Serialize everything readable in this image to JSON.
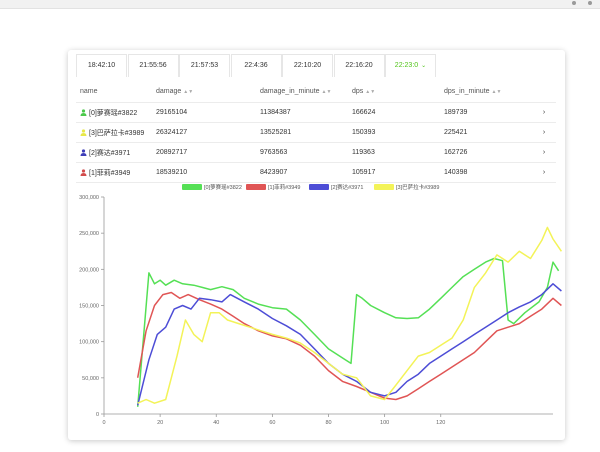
{
  "timestamps": [
    "18:42:10",
    "21:55:56",
    "21:57:53",
    "22:4:36",
    "22:10:20",
    "22:16:20",
    "22:23:0"
  ],
  "active_timestamp_index": 6,
  "table": {
    "columns": [
      "name",
      "damage",
      "damage_in_minute",
      "dps",
      "dps_in_minute"
    ],
    "rows": [
      {
        "name": "[0]萝赛瑶#3822",
        "damage": "29165104",
        "damage_in_minute": "11384387",
        "dps": "166624",
        "dps_in_minute": "189739",
        "color": "#4cc94c"
      },
      {
        "name": "[3]巴萨拉卡#3989",
        "damage": "26324127",
        "damage_in_minute": "13525281",
        "dps": "150393",
        "dps_in_minute": "225421",
        "color": "#e8e84a"
      },
      {
        "name": "[2]赛达#3971",
        "damage": "20892717",
        "damage_in_minute": "9763563",
        "dps": "119363",
        "dps_in_minute": "162726",
        "color": "#3f3fb8"
      },
      {
        "name": "[1]菲莉#3949",
        "damage": "18539210",
        "damage_in_minute": "8423907",
        "dps": "105917",
        "dps_in_minute": "140398",
        "color": "#d24c4c"
      }
    ]
  },
  "colors": {
    "accent": "#52c41a"
  },
  "chart_data": {
    "type": "line",
    "legend": [
      "[0]萝赛瑶#3822",
      "[1]菲莉#3949",
      "[2]赛达#3971",
      "[3]巴萨拉卡#3989"
    ],
    "legend_position": "top",
    "xticks": [
      0,
      20,
      40,
      60,
      80,
      100,
      120
    ],
    "yticks": [
      "0",
      "50,000",
      "100,000",
      "150,000",
      "200,000",
      "250,000",
      "300,000"
    ],
    "xlim": [
      0,
      160
    ],
    "ylim": [
      0,
      300000
    ],
    "grid": false,
    "series": [
      {
        "name": "[0]萝赛瑶#3822",
        "color": "#55e055",
        "points": [
          [
            12,
            10000
          ],
          [
            16,
            195000
          ],
          [
            18,
            180000
          ],
          [
            20,
            185000
          ],
          [
            22,
            178000
          ],
          [
            25,
            185000
          ],
          [
            28,
            180000
          ],
          [
            32,
            178000
          ],
          [
            35,
            175000
          ],
          [
            38,
            172000
          ],
          [
            42,
            176000
          ],
          [
            46,
            172000
          ],
          [
            50,
            160000
          ],
          [
            55,
            152000
          ],
          [
            60,
            147000
          ],
          [
            65,
            145000
          ],
          [
            70,
            130000
          ],
          [
            75,
            110000
          ],
          [
            80,
            90000
          ],
          [
            84,
            80000
          ],
          [
            86,
            75000
          ],
          [
            88,
            70000
          ],
          [
            90,
            165000
          ],
          [
            92,
            160000
          ],
          [
            95,
            150000
          ],
          [
            100,
            140000
          ],
          [
            104,
            133000
          ],
          [
            108,
            132000
          ],
          [
            112,
            133000
          ],
          [
            116,
            145000
          ],
          [
            120,
            160000
          ],
          [
            124,
            175000
          ],
          [
            128,
            190000
          ],
          [
            132,
            200000
          ],
          [
            136,
            210000
          ],
          [
            139,
            215000
          ],
          [
            142,
            212000
          ],
          [
            144,
            130000
          ],
          [
            146,
            125000
          ],
          [
            150,
            140000
          ],
          [
            155,
            155000
          ],
          [
            158,
            175000
          ],
          [
            160,
            210000
          ],
          [
            162,
            198000
          ]
        ]
      },
      {
        "name": "[1]菲莉#3949",
        "color": "#e05555",
        "points": [
          [
            12,
            50000
          ],
          [
            15,
            115000
          ],
          [
            18,
            150000
          ],
          [
            21,
            165000
          ],
          [
            24,
            168000
          ],
          [
            27,
            160000
          ],
          [
            30,
            165000
          ],
          [
            34,
            158000
          ],
          [
            38,
            152000
          ],
          [
            42,
            145000
          ],
          [
            46,
            135000
          ],
          [
            50,
            125000
          ],
          [
            55,
            115000
          ],
          [
            60,
            108000
          ],
          [
            65,
            104000
          ],
          [
            70,
            95000
          ],
          [
            75,
            80000
          ],
          [
            80,
            60000
          ],
          [
            85,
            45000
          ],
          [
            90,
            38000
          ],
          [
            95,
            30000
          ],
          [
            100,
            22000
          ],
          [
            104,
            20000
          ],
          [
            108,
            25000
          ],
          [
            112,
            35000
          ],
          [
            116,
            45000
          ],
          [
            120,
            55000
          ],
          [
            124,
            65000
          ],
          [
            128,
            75000
          ],
          [
            132,
            85000
          ],
          [
            136,
            100000
          ],
          [
            140,
            115000
          ],
          [
            144,
            120000
          ],
          [
            148,
            125000
          ],
          [
            152,
            135000
          ],
          [
            156,
            145000
          ],
          [
            160,
            160000
          ],
          [
            163,
            150000
          ]
        ]
      },
      {
        "name": "[2]赛达#3971",
        "color": "#4d4dd6",
        "points": [
          [
            12,
            12000
          ],
          [
            16,
            75000
          ],
          [
            19,
            110000
          ],
          [
            22,
            120000
          ],
          [
            25,
            145000
          ],
          [
            28,
            150000
          ],
          [
            31,
            145000
          ],
          [
            34,
            160000
          ],
          [
            38,
            158000
          ],
          [
            42,
            155000
          ],
          [
            45,
            165000
          ],
          [
            50,
            155000
          ],
          [
            55,
            145000
          ],
          [
            60,
            132000
          ],
          [
            65,
            122000
          ],
          [
            70,
            110000
          ],
          [
            75,
            90000
          ],
          [
            80,
            70000
          ],
          [
            85,
            55000
          ],
          [
            90,
            45000
          ],
          [
            95,
            30000
          ],
          [
            100,
            25000
          ],
          [
            104,
            30000
          ],
          [
            108,
            45000
          ],
          [
            112,
            55000
          ],
          [
            116,
            70000
          ],
          [
            120,
            80000
          ],
          [
            124,
            90000
          ],
          [
            128,
            100000
          ],
          [
            132,
            110000
          ],
          [
            136,
            120000
          ],
          [
            140,
            130000
          ],
          [
            144,
            140000
          ],
          [
            148,
            148000
          ],
          [
            152,
            155000
          ],
          [
            156,
            165000
          ],
          [
            160,
            180000
          ],
          [
            163,
            170000
          ]
        ]
      },
      {
        "name": "[3]巴萨拉卡#3989",
        "color": "#f3f358",
        "points": [
          [
            12,
            15000
          ],
          [
            15,
            20000
          ],
          [
            18,
            15000
          ],
          [
            22,
            20000
          ],
          [
            26,
            80000
          ],
          [
            29,
            130000
          ],
          [
            32,
            110000
          ],
          [
            35,
            100000
          ],
          [
            38,
            140000
          ],
          [
            41,
            140000
          ],
          [
            44,
            130000
          ],
          [
            48,
            125000
          ],
          [
            52,
            120000
          ],
          [
            56,
            115000
          ],
          [
            60,
            110000
          ],
          [
            65,
            105000
          ],
          [
            70,
            98000
          ],
          [
            75,
            85000
          ],
          [
            80,
            70000
          ],
          [
            85,
            55000
          ],
          [
            90,
            50000
          ],
          [
            95,
            25000
          ],
          [
            100,
            20000
          ],
          [
            104,
            40000
          ],
          [
            108,
            60000
          ],
          [
            112,
            80000
          ],
          [
            116,
            85000
          ],
          [
            120,
            95000
          ],
          [
            124,
            105000
          ],
          [
            128,
            130000
          ],
          [
            132,
            175000
          ],
          [
            136,
            195000
          ],
          [
            140,
            220000
          ],
          [
            144,
            210000
          ],
          [
            148,
            225000
          ],
          [
            152,
            215000
          ],
          [
            156,
            240000
          ],
          [
            158,
            258000
          ],
          [
            160,
            242000
          ],
          [
            163,
            225000
          ]
        ]
      }
    ]
  }
}
